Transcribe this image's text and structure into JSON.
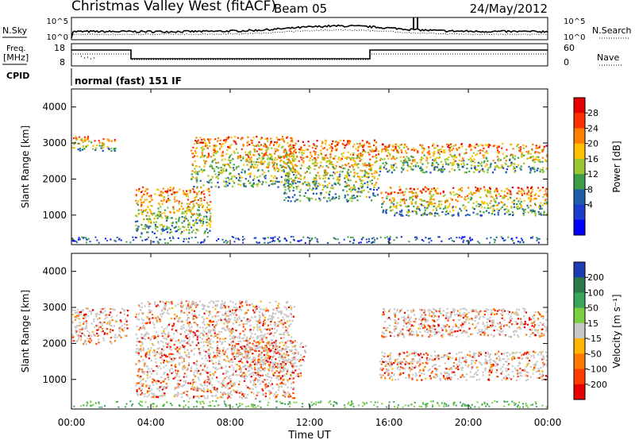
{
  "header": {
    "station": "Christmas Valley West (fitACF)",
    "beam": "Beam 05",
    "date": "24/May/2012"
  },
  "noise_panel": {
    "left_label": "N.Sky",
    "right_label": "N.Search",
    "ticks_top": "10^5",
    "ticks_bottom": "10^0"
  },
  "freq_panel": {
    "left_label_line1": "Freq.",
    "left_label_line2": "[MHz]",
    "right_label": "Nave",
    "left_top": "18",
    "left_bottom": "8",
    "right_top": "60",
    "right_bottom": "0"
  },
  "cpid": {
    "label": "CPID",
    "value": "normal (fast) 151 IF"
  },
  "chart_data": [
    {
      "type": "heatmap",
      "quantity": "power",
      "ylabel": "Slant Range [km]",
      "ylim": [
        180,
        4500
      ],
      "yticks": [
        1000,
        2000,
        3000,
        4000
      ],
      "colorbar_label": "Power [dB]",
      "colorbar_ticks": [
        "28",
        "24",
        "20",
        "16",
        "12",
        "8",
        "4"
      ],
      "colorbar_colors": [
        "#e50000",
        "#ff3000",
        "#ff7f00",
        "#ffc000",
        "#9ac832",
        "#3c9e46",
        "#1f5fa8",
        "#1c3ccd",
        "#0000ff"
      ],
      "echo_bands": [
        {
          "t_start": 0.0,
          "t_end": 2.2,
          "range_start": 2800,
          "range_end": 3200
        },
        {
          "t_start": 3.2,
          "t_end": 7.0,
          "range_start": 500,
          "range_end": 1800
        },
        {
          "t_start": 6.0,
          "t_end": 11.2,
          "range_start": 1800,
          "range_end": 3200
        },
        {
          "t_start": 10.6,
          "t_end": 15.5,
          "range_start": 1400,
          "range_end": 3100
        },
        {
          "t_start": 15.5,
          "t_end": 24.0,
          "range_start": 2200,
          "range_end": 3000
        },
        {
          "t_start": 15.5,
          "t_end": 24.0,
          "range_start": 1000,
          "range_end": 1800
        }
      ]
    },
    {
      "type": "heatmap",
      "quantity": "velocity",
      "ylabel": "Slant Range [km]",
      "ylim": [
        180,
        4500
      ],
      "yticks": [
        1000,
        2000,
        3000,
        4000
      ],
      "xlabel": "Time UT",
      "xticks": [
        "00:00",
        "04:00",
        "08:00",
        "12:00",
        "16:00",
        "20:00",
        "00:00"
      ],
      "colorbar_label": "Velocity [m s⁻¹]",
      "colorbar_ticks": [
        "200",
        "100",
        "50",
        "15",
        "-15",
        "-50",
        "-100",
        "-200"
      ],
      "colorbar_colors": [
        "#1e3cb4",
        "#2a7a4a",
        "#3aa65a",
        "#7ad040",
        "#c8c8c8",
        "#ffb400",
        "#ff7800",
        "#ff3c00",
        "#e60000"
      ],
      "echo_bands": [
        {
          "t_start": 0.0,
          "t_end": 2.8,
          "range_start": 2000,
          "range_end": 3000
        },
        {
          "t_start": 3.2,
          "t_end": 11.2,
          "range_start": 500,
          "range_end": 3200
        },
        {
          "t_start": 8.0,
          "t_end": 11.8,
          "range_start": 1100,
          "range_end": 2100
        },
        {
          "t_start": 15.5,
          "t_end": 24.0,
          "range_start": 2200,
          "range_end": 3000
        },
        {
          "t_start": 15.5,
          "t_end": 24.0,
          "range_start": 1000,
          "range_end": 1800
        }
      ]
    }
  ]
}
